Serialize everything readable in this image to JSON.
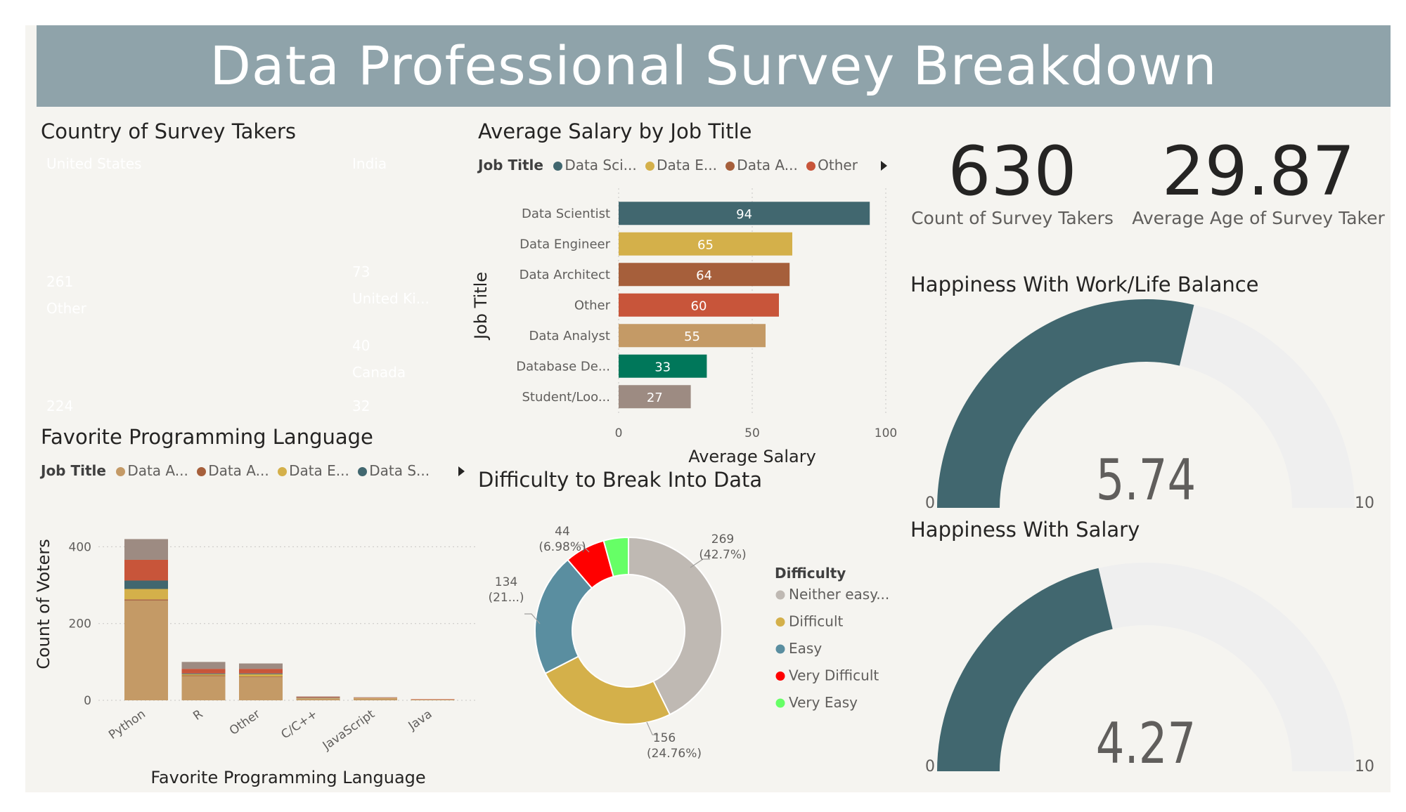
{
  "dashboard": {
    "title": "Data Professional Survey Breakdown",
    "colors": {
      "banner": "#8fa3aa",
      "background": "#f5f4f0",
      "dark_teal": "#41676f",
      "gold": "#d4b04a",
      "brown": "#a65f3b",
      "orange_red": "#c8553a",
      "tan": "#c49a66",
      "green": "#00775a",
      "gray": "#9d8b82"
    }
  },
  "country": {
    "title": "Country of Survey Takers",
    "tiles": [
      {
        "name": "United States",
        "value": "261",
        "color": "#3a5bc3"
      },
      {
        "name": "India",
        "value": "73",
        "color": "#41676f"
      },
      {
        "name": "Other",
        "value": "224",
        "color": "#69bf52"
      },
      {
        "name": "United Ki...",
        "value": "40",
        "color": "#ff3b00"
      },
      {
        "name": "Canada",
        "value": "32",
        "color": "#ffb431"
      }
    ]
  },
  "salary": {
    "title": "Average Salary by Job Title",
    "legend_title": "Job Title",
    "legend": [
      {
        "label": "Data Sci...",
        "color": "#41676f"
      },
      {
        "label": "Data E...",
        "color": "#d4b04a"
      },
      {
        "label": "Data A...",
        "color": "#a65f3b"
      },
      {
        "label": "Other",
        "color": "#c8553a"
      }
    ]
  },
  "kpis": {
    "count": {
      "value": "630",
      "label": "Count of Survey Takers"
    },
    "age": {
      "value": "29.87",
      "label": "Average Age of Survey Taker"
    }
  },
  "gauges": {
    "worklife": {
      "title": "Happiness With Work/Life Balance",
      "value": 5.74,
      "display": "5.74",
      "min": "0",
      "max": "10"
    },
    "salary": {
      "title": "Happiness With Salary",
      "value": 4.27,
      "display": "4.27",
      "min": "0",
      "max": "10"
    }
  },
  "language": {
    "title": "Favorite Programming Language",
    "legend_title": "Job Title",
    "legend": [
      {
        "label": "Data A...",
        "color": "#c49a66"
      },
      {
        "label": "Data A...",
        "color": "#a65f3b"
      },
      {
        "label": "Data E...",
        "color": "#d4b04a"
      },
      {
        "label": "Data S...",
        "color": "#41676f"
      }
    ]
  },
  "difficulty": {
    "title": "Difficulty to Break Into Data",
    "legend_title": "Difficulty"
  },
  "chart_data": [
    {
      "type": "bar",
      "orientation": "horizontal",
      "title": "Average Salary by Job Title",
      "xlabel": "Average Salary",
      "ylabel": "Job Title",
      "categories": [
        "Data Scientist",
        "Data Engineer",
        "Data Architect",
        "Other",
        "Data Analyst",
        "Database De...",
        "Student/Loo..."
      ],
      "values": [
        94,
        65,
        64,
        60,
        55,
        33,
        27
      ],
      "colors": [
        "#41676f",
        "#d4b04a",
        "#a65f3b",
        "#c8553a",
        "#c49a66",
        "#00775a",
        "#9d8b82"
      ],
      "xlim": [
        0,
        100
      ],
      "xticks": [
        "0",
        "50",
        "100"
      ],
      "grid": true
    },
    {
      "type": "bar",
      "stacked": true,
      "title": "Favorite Programming Language",
      "xlabel": "Favorite Programming Language",
      "ylabel": "Count of Voters",
      "categories": [
        "Python",
        "R",
        "Other",
        "C/C++",
        "JavaScript",
        "Java"
      ],
      "series": [
        {
          "name": "Data A...",
          "color": "#c49a66",
          "values": [
            260,
            63,
            60,
            5,
            5,
            2
          ]
        },
        {
          "name": "Data A...",
          "color": "#a65f3b",
          "values": [
            3,
            2,
            2,
            0,
            0,
            0
          ]
        },
        {
          "name": "Data E...",
          "color": "#d4b04a",
          "values": [
            27,
            3,
            6,
            1,
            1,
            0
          ]
        },
        {
          "name": "Data S...",
          "color": "#41676f",
          "values": [
            22,
            2,
            2,
            1,
            0,
            0
          ]
        },
        {
          "name": "",
          "color": "#c8553a",
          "values": [
            54,
            12,
            12,
            2,
            1,
            1
          ]
        },
        {
          "name": "",
          "color": "#9d8b82",
          "values": [
            54,
            18,
            14,
            1,
            1,
            0
          ]
        }
      ],
      "ylim": [
        0,
        430
      ],
      "yticks": [
        "0",
        "200",
        "400"
      ],
      "grid": true
    },
    {
      "type": "pie",
      "donut": true,
      "title": "Difficulty to Break Into Data",
      "legend_title": "Difficulty",
      "legend_position": "right",
      "slices": [
        {
          "label": "Neither easy...",
          "value": 269,
          "pct": "42.7%",
          "color": "#bfb9b3"
        },
        {
          "label": "Difficult",
          "value": 156,
          "pct": "24.76%",
          "color": "#d4b04a"
        },
        {
          "label": "Easy",
          "value": 134,
          "pct": "21...",
          "color": "#5a8ea0"
        },
        {
          "label": "Very Difficult",
          "value": 44,
          "pct": "6.98%",
          "color": "#ff0000"
        },
        {
          "label": "Very Easy",
          "value": 27,
          "pct": "",
          "color": "#66ff66"
        }
      ],
      "labels": [
        {
          "value": "269",
          "pct": "(42.7%)"
        },
        {
          "value": "156",
          "pct": "(24.76%)"
        },
        {
          "value": "134",
          "pct": "(21...)"
        },
        {
          "value": "44",
          "pct": "(6.98%)"
        }
      ]
    },
    {
      "type": "gauge",
      "title": "Happiness With Work/Life Balance",
      "value": 5.74,
      "min": 0,
      "max": 10
    },
    {
      "type": "gauge",
      "title": "Happiness With Salary",
      "value": 4.27,
      "min": 0,
      "max": 10
    }
  ]
}
